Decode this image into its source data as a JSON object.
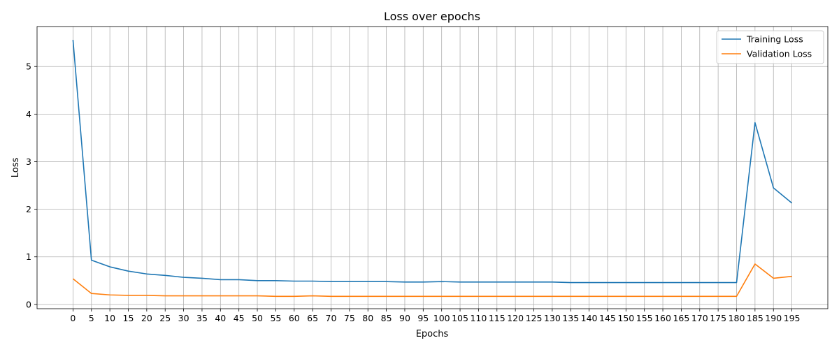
{
  "chart_data": {
    "type": "line",
    "title": "Loss over epochs",
    "xlabel": "Epochs",
    "ylabel": "Loss",
    "x": [
      0,
      5,
      10,
      15,
      20,
      25,
      30,
      35,
      40,
      45,
      50,
      55,
      60,
      65,
      70,
      75,
      80,
      85,
      90,
      95,
      100,
      105,
      110,
      115,
      120,
      125,
      130,
      135,
      140,
      145,
      150,
      155,
      160,
      165,
      170,
      175,
      180,
      185,
      190,
      195
    ],
    "xticks": [
      0,
      5,
      10,
      15,
      20,
      25,
      30,
      35,
      40,
      45,
      50,
      55,
      60,
      65,
      70,
      75,
      80,
      85,
      90,
      95,
      100,
      105,
      110,
      115,
      120,
      125,
      130,
      135,
      140,
      145,
      150,
      155,
      160,
      165,
      170,
      175,
      180,
      185,
      190,
      195
    ],
    "yticks": [
      0,
      1,
      2,
      3,
      4,
      5
    ],
    "xlim": [
      -9.75,
      204.75
    ],
    "ylim": [
      -0.09,
      5.84
    ],
    "grid": true,
    "legend_position": "top-right",
    "series": [
      {
        "name": "Training Loss",
        "color": "#1f77b4",
        "values": [
          5.56,
          0.93,
          0.79,
          0.7,
          0.64,
          0.61,
          0.57,
          0.55,
          0.52,
          0.52,
          0.5,
          0.5,
          0.49,
          0.49,
          0.48,
          0.48,
          0.48,
          0.48,
          0.47,
          0.47,
          0.48,
          0.47,
          0.47,
          0.47,
          0.47,
          0.47,
          0.47,
          0.46,
          0.46,
          0.46,
          0.46,
          0.46,
          0.46,
          0.46,
          0.46,
          0.46,
          0.46,
          3.82,
          2.45,
          2.13
        ]
      },
      {
        "name": "Validation Loss",
        "color": "#ff7f0e",
        "values": [
          0.54,
          0.23,
          0.2,
          0.19,
          0.19,
          0.18,
          0.18,
          0.18,
          0.18,
          0.18,
          0.18,
          0.17,
          0.17,
          0.18,
          0.17,
          0.17,
          0.17,
          0.17,
          0.17,
          0.17,
          0.17,
          0.17,
          0.17,
          0.17,
          0.17,
          0.17,
          0.17,
          0.17,
          0.17,
          0.17,
          0.17,
          0.17,
          0.17,
          0.17,
          0.17,
          0.17,
          0.17,
          0.85,
          0.55,
          0.59
        ]
      }
    ]
  }
}
